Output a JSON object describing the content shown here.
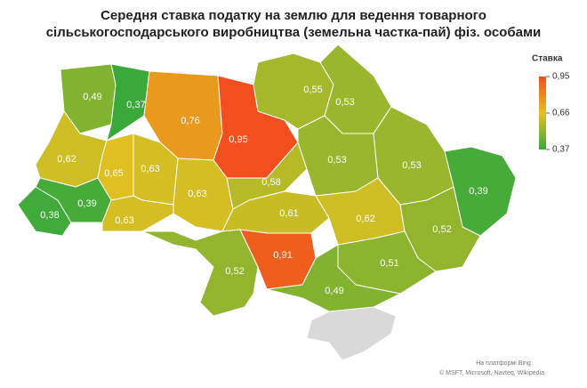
{
  "chart_data": {
    "type": "choropleth",
    "title": "Середня ставка податку на землю для ведення товарного сільськогосподарського виробництва (земельна частка-пай) фіз. особами",
    "values": [
      0.49,
      0.37,
      0.76,
      0.95,
      0.55,
      0.53,
      0.62,
      0.65,
      0.63,
      0.63,
      0.58,
      0.53,
      0.53,
      0.39,
      0.38,
      0.39,
      0.63,
      0.61,
      0.62,
      0.52,
      0.52,
      0.91,
      0.51,
      0.49
    ],
    "value_labels": [
      "0,49",
      "0,37",
      "0,76",
      "0,95",
      "0,55",
      "0,53",
      "0,62",
      "0,65",
      "0,63",
      "0,63",
      "0,58",
      "0,53",
      "0,53",
      "0,39",
      "0,38",
      "0,39",
      "0,63",
      "0,61",
      "0,62",
      "0,52",
      "0,52",
      "0,91",
      "0,51",
      "0,49"
    ],
    "colors": {
      "low": "#3aa93b",
      "mid": "#e6c020",
      "high": "#f24e1e"
    },
    "no_data_color": "#d9d9d9",
    "legend": {
      "title": "Ставка",
      "ticks": [
        {
          "value": 0.95,
          "label": "0,95"
        },
        {
          "value": 0.66,
          "label": "0,66"
        },
        {
          "value": 0.37,
          "label": "0,37"
        }
      ]
    },
    "attribution": [
      "На платформі Bing",
      "© MSFT, Microsoft, Navteq, Wikipedia"
    ]
  }
}
